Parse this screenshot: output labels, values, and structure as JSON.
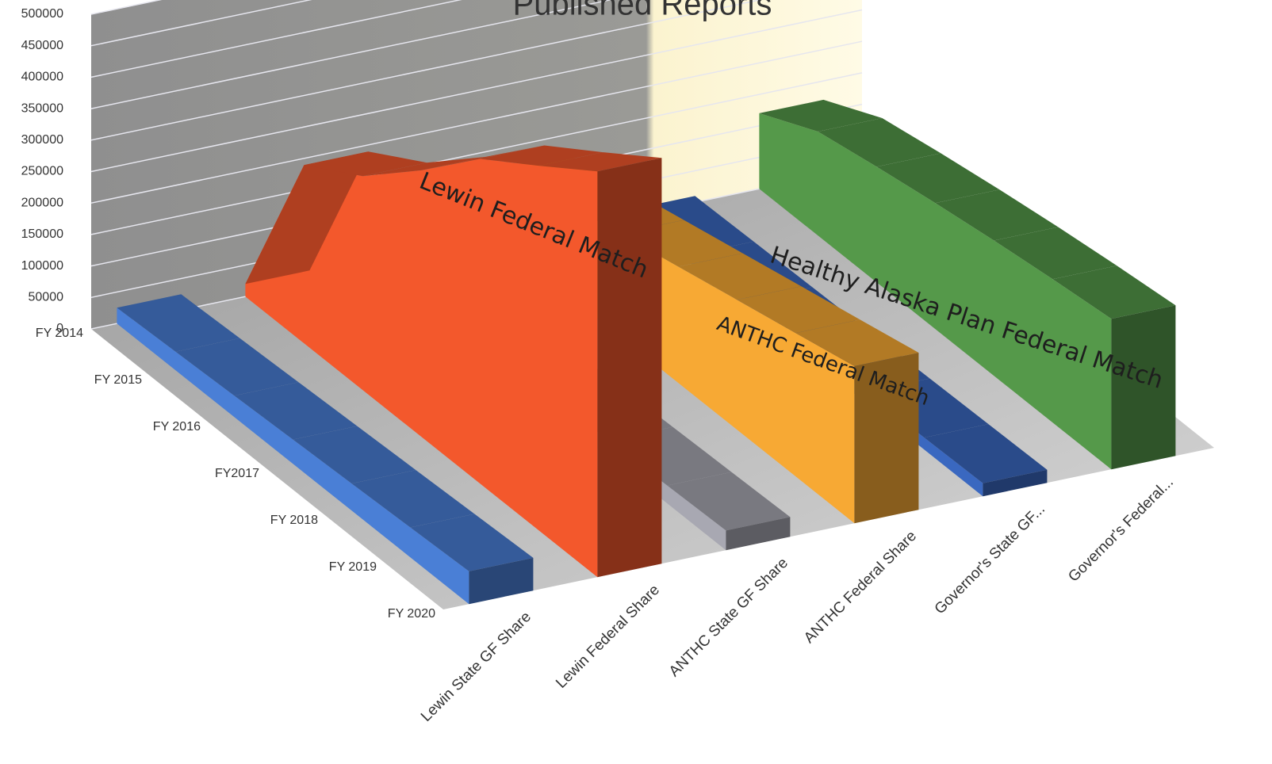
{
  "chart_data": {
    "type": "area",
    "title": "Published Reports",
    "categories": [
      "FY 2014",
      "FY 2015",
      "FY 2016",
      "FY2017",
      "FY 2018",
      "FY 2019",
      "FY 2020"
    ],
    "series": [
      {
        "name": "Lewin State GF Share",
        "color": "#4a7fd6",
        "values": [
          25000,
          25000,
          25000,
          25000,
          25000,
          25000,
          25000
        ]
      },
      {
        "name": "Lewin Federal Share",
        "color": "#f3582c",
        "values": [
          20000,
          240000,
          250000,
          275000,
          300000,
          305000,
          310000
        ]
      },
      {
        "name": "ANTHC State GF Share",
        "color": "#a8a8b2",
        "values": [
          15000,
          15000,
          15000,
          15000,
          15000,
          15000,
          15000
        ]
      },
      {
        "name": "ANTHC Federal Share",
        "color": "#f7a934",
        "values": [
          120000,
          120000,
          120000,
          120000,
          120000,
          120000,
          120000
        ]
      },
      {
        "name": "Governor's State GF...",
        "color": "#3a68c0",
        "values": [
          10000,
          10000,
          10000,
          10000,
          10000,
          10000,
          10000
        ]
      },
      {
        "name": "Governor's Federal...",
        "color": "#55994a",
        "values": [
          120000,
          140000,
          135000,
          130000,
          125000,
          120000,
          115000
        ]
      }
    ],
    "ylim": [
      0,
      500000
    ],
    "yticks": [
      0,
      50000,
      100000,
      150000,
      200000,
      250000,
      300000,
      350000,
      400000,
      450000,
      500000
    ],
    "grid": true,
    "annotations": [
      "Lewin Federal Match",
      "ANTHC Federal Match",
      "Healthy Alaska Plan Federal Match"
    ]
  }
}
